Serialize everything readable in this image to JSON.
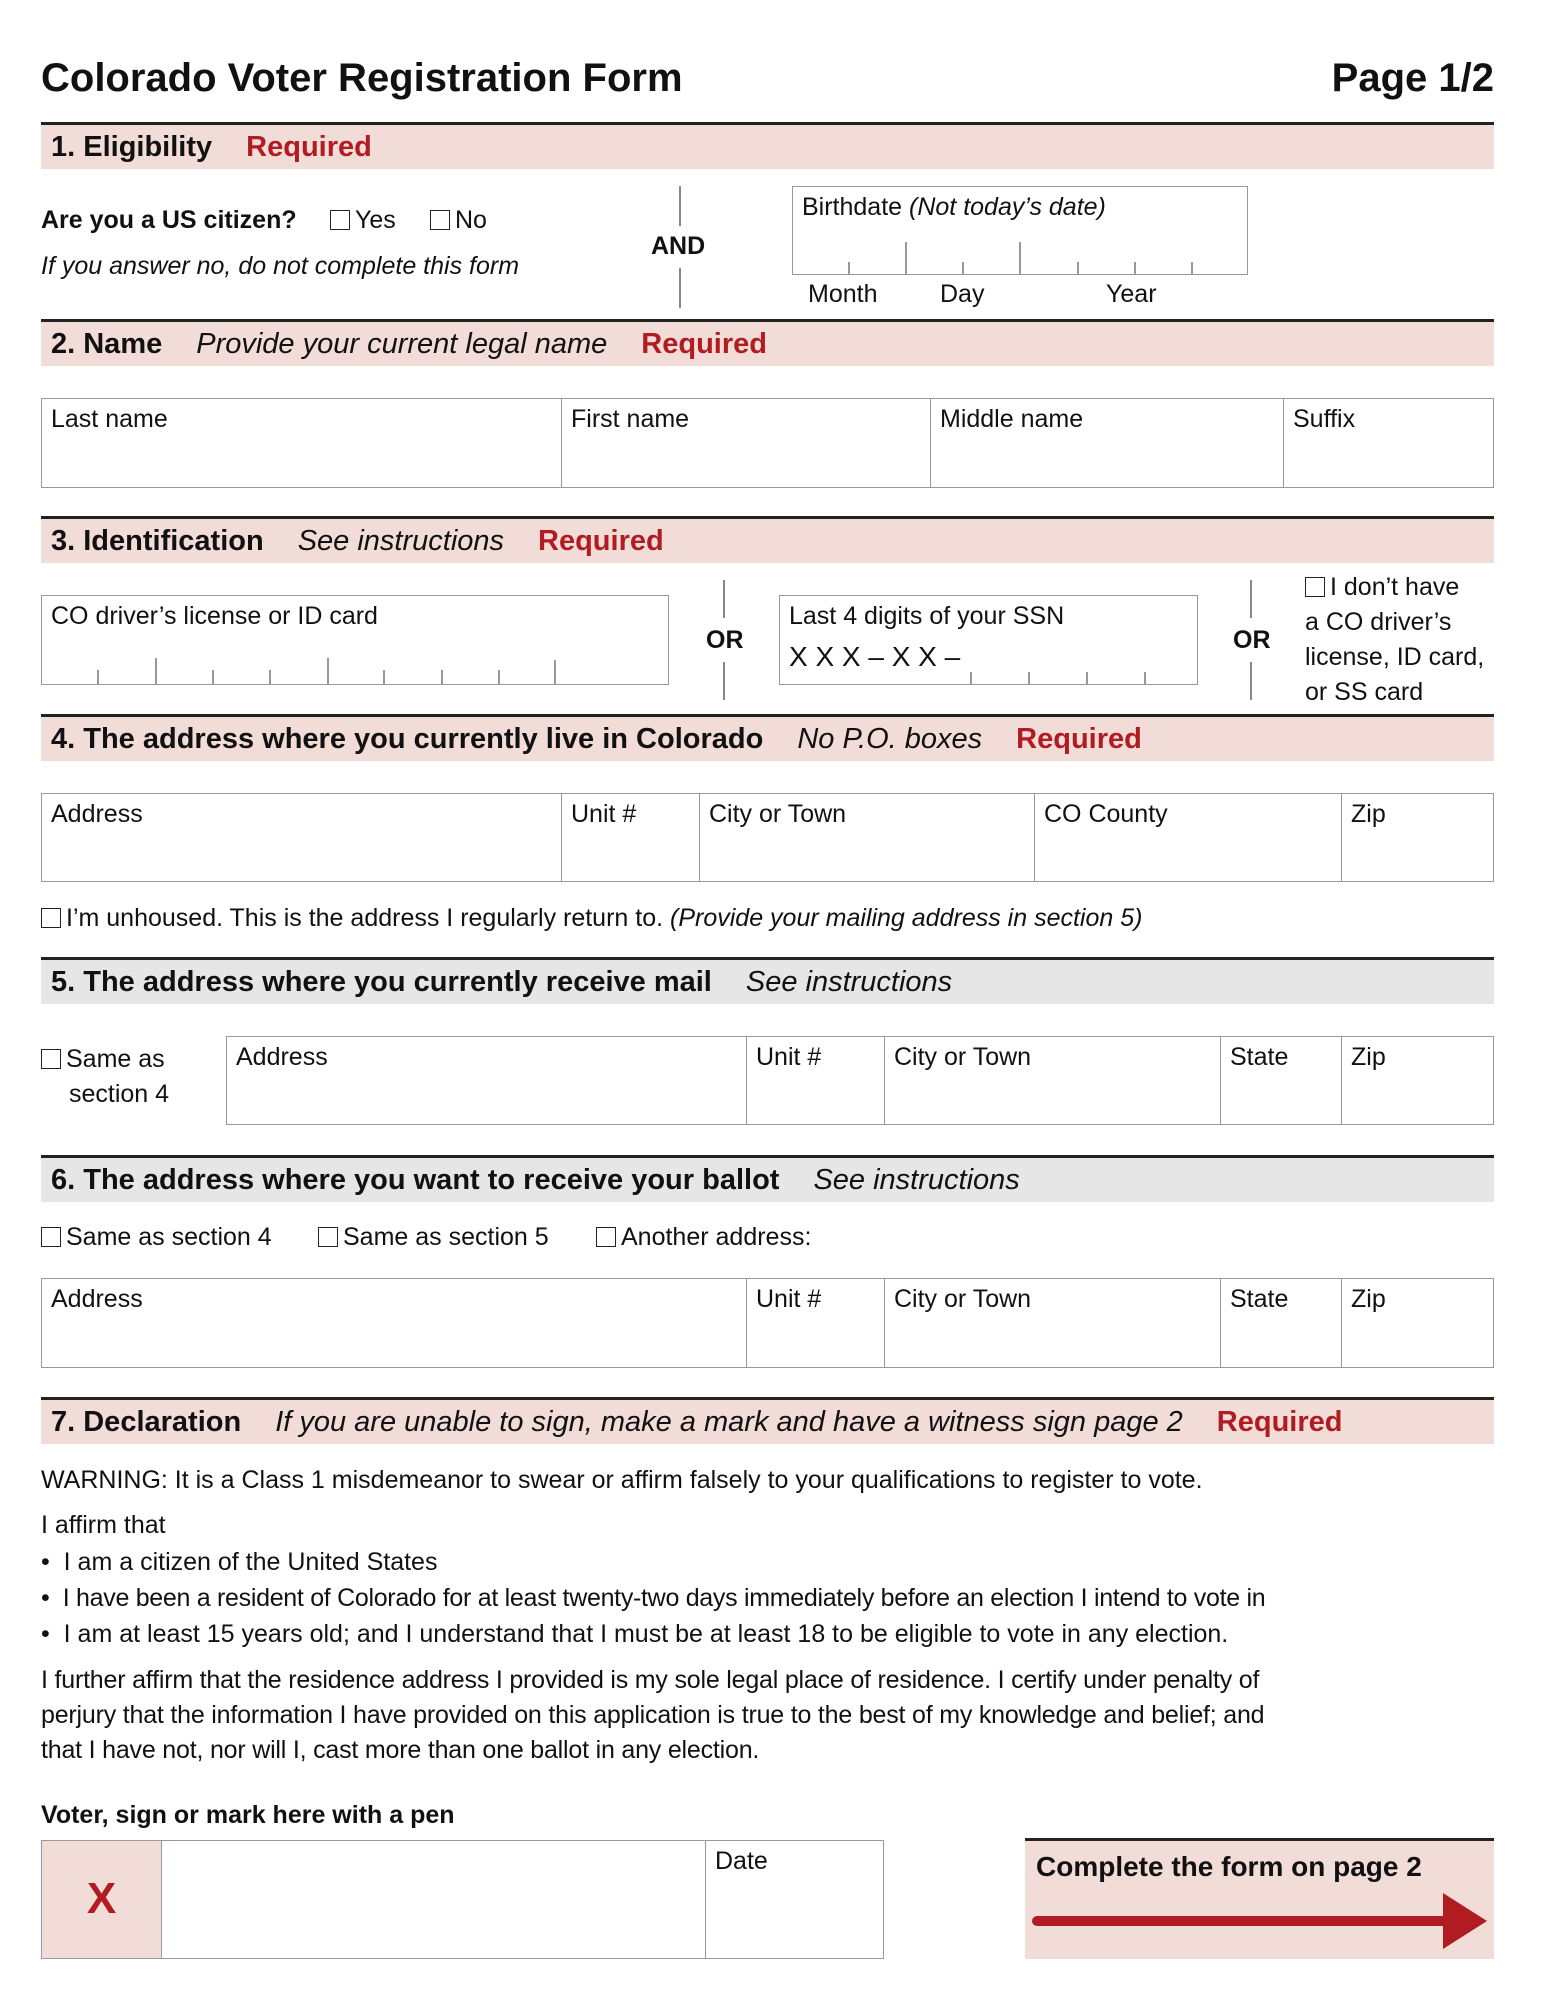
{
  "title": "Colorado Voter Registration Form",
  "page": "Page 1/2",
  "required": "Required",
  "s1": {
    "title": "1. Eligibility",
    "question": "Are you a US citizen?",
    "yes": "Yes",
    "no": "No",
    "note": "If you answer no, do not complete this form",
    "and": "AND",
    "birthdate": "Birthdate",
    "birthdate_note": "(Not today’s date)",
    "month": "Month",
    "day": "Day",
    "year": "Year"
  },
  "s2": {
    "title": "2. Name",
    "note": "Provide your current legal name",
    "fields": [
      "Last name",
      "First name",
      "Middle name",
      "Suffix"
    ]
  },
  "s3": {
    "title": "3. Identification",
    "note": "See instructions",
    "license": "CO driver’s license or ID card",
    "or": "OR",
    "ssn": "Last 4 digits of your SSN",
    "ssn_mask": "X X X – X X –",
    "none": [
      "I don’t have",
      "a CO driver’s",
      "license, ID card,",
      "or SS card"
    ]
  },
  "s4": {
    "title": "4. The address where you currently live in Colorado",
    "note": "No P.O. boxes",
    "fields": [
      "Address",
      "Unit #",
      "City or Town",
      "CO County",
      "Zip"
    ],
    "unhoused": "I’m unhoused. This is the address I regularly return to.",
    "unhoused_note": "(Provide your mailing address in section 5)"
  },
  "s5": {
    "title": "5. The address where you currently receive mail",
    "note": "See instructions",
    "same1": "Same as",
    "same2": "section 4",
    "fields": [
      "Address",
      "Unit #",
      "City or Town",
      "State",
      "Zip"
    ]
  },
  "s6": {
    "title": "6. The address where you want to receive your ballot",
    "note": "See instructions",
    "opts": [
      "Same as section 4",
      "Same as section 5",
      "Another address:"
    ],
    "fields": [
      "Address",
      "Unit #",
      "City or Town",
      "State",
      "Zip"
    ]
  },
  "s7": {
    "title": "7. Declaration",
    "note": "If you are unable to sign, make a mark and have a witness sign page 2",
    "warning": "WARNING: It is a Class 1 misdemeanor to swear or affirm falsely to your qualifications to register to vote.",
    "affirm": "I affirm that",
    "bullets": [
      "I am a citizen of the United States",
      "I have been a resident of Colorado for at least twenty-two days immediately before an election I intend to vote in",
      "I am at least 15 years old; and I understand that I must be at least 18 to be eligible to vote in any election."
    ],
    "para": [
      "I further affirm that the residence address I provided is my sole legal place of residence. I certify under penalty of",
      "perjury that the information I have provided on this application is true to the best of my knowledge and belief; and",
      "that I have not, nor will I, cast more than one ballot in any election."
    ],
    "sign_label": "Voter, sign or mark here with a pen",
    "x": "X",
    "date": "Date",
    "next": "Complete the form on page 2"
  },
  "colors": {
    "header": "#f2dcd8",
    "header_gray": "#e6e6e6",
    "accent": "#b01c22"
  }
}
